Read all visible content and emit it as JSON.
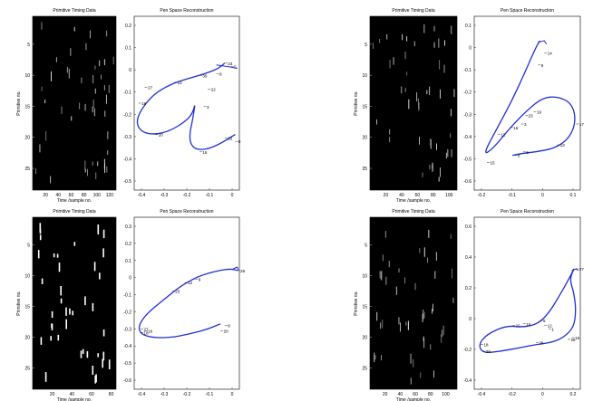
{
  "panels": [
    {
      "timing": {
        "title": "Primitive Timing Data",
        "ylabel": "Primitive no.",
        "xlabel": "Time /sample no.",
        "xticks": [
          "20",
          "40",
          "60",
          "80",
          "100",
          "120"
        ],
        "yticks": [
          "5",
          "10",
          "15",
          "20",
          "25"
        ],
        "xmax": 130
      },
      "pen": {
        "title": "Pen Space Reconstruction",
        "xticks": [
          "-0.4",
          "-0.3",
          "-0.2",
          "-0.1",
          "0"
        ],
        "yticks": [
          "0.2",
          "0.1",
          "0",
          "-0.1",
          "-0.2",
          "-0.3",
          "-0.4",
          "-0.5"
        ],
        "labels": [
          "23",
          "27",
          "18",
          "12",
          "22",
          "9",
          "3",
          "5",
          "30",
          "25",
          "8",
          "20",
          "16",
          "6"
        ]
      }
    },
    {
      "timing": {
        "title": "Primitive Timing Data",
        "ylabel": "Primitive no.",
        "xlabel": "Time /sample no.",
        "xticks": [
          "20",
          "40",
          "60",
          "80",
          "100"
        ],
        "yticks": [
          "5",
          "10",
          "15",
          "20",
          "25"
        ],
        "xmax": 110
      },
      "pen": {
        "title": "Pen Space Reconstruction",
        "xticks": [
          "-0.2",
          "-0.1",
          "0",
          "0.1"
        ],
        "yticks": [
          "0.1",
          "0",
          "-0.1",
          "-0.2",
          "-0.3",
          "-0.4",
          "-0.5",
          "-0.6"
        ],
        "labels": [
          "14",
          "9",
          "19",
          "23",
          "3",
          "16",
          "12",
          "15",
          "17",
          "13",
          "6",
          "8"
        ]
      }
    },
    {
      "timing": {
        "title": "Primitive Timing Data",
        "ylabel": "Primitive no.",
        "xlabel": "Time /sample no.",
        "xticks": [
          "20",
          "40",
          "60",
          "80"
        ],
        "yticks": [
          "5",
          "10",
          "15",
          "20",
          "25"
        ],
        "xmax": 85
      },
      "pen": {
        "title": "Pen Space Reconstruction",
        "xticks": [
          "-0.4",
          "-0.3",
          "-0.2",
          "-0.1",
          "0"
        ],
        "yticks": [
          "0.3",
          "0.2",
          "0.1",
          "0",
          "-0.1",
          "-0.2",
          "-0.3",
          "-0.4",
          "-0.5",
          "-0.6"
        ],
        "labels": [
          "26",
          "23",
          "12",
          "9",
          "16",
          "27",
          "18",
          "8",
          "20"
        ]
      }
    },
    {
      "timing": {
        "title": "Primitive Timing Data",
        "ylabel": "Primitive no.",
        "xlabel": "Time /sample no.",
        "xticks": [
          "20",
          "40",
          "60",
          "80",
          "100"
        ],
        "yticks": [
          "5",
          "10",
          "15",
          "20",
          "25"
        ],
        "xmax": 115
      },
      "pen": {
        "title": "Pen Space Reconstruction",
        "xticks": [
          "-0.4",
          "-0.2",
          "0",
          "0.2"
        ],
        "yticks": [
          "0.6",
          "0.4",
          "0.2",
          "0",
          "-0.2",
          "-0.4"
        ],
        "labels": [
          "27",
          "22",
          "16",
          "6",
          "12",
          "1",
          "28",
          "18",
          "29",
          "26",
          "15"
        ]
      }
    }
  ],
  "chart_data": [
    {
      "type": "heatmap",
      "title": "Primitive Timing Data",
      "xlabel": "Time /sample no.",
      "ylabel": "Primitive no.",
      "xlim": [
        1,
        130
      ],
      "ylim": [
        1,
        28
      ]
    },
    {
      "type": "line",
      "title": "Pen Space Reconstruction",
      "xlim": [
        -0.45,
        0.05
      ],
      "ylim": [
        -0.58,
        0.28
      ],
      "series": [
        {
          "x": [
            -0.06,
            -0.04,
            -0.08,
            -0.14,
            -0.22,
            -0.33,
            -0.42,
            -0.45,
            -0.42,
            -0.34,
            -0.2,
            -0.12,
            -0.11,
            -0.1,
            -0.08,
            -0.05,
            -0.02,
            0.0,
            0.02,
            0.04
          ],
          "y": [
            0.03,
            0.0,
            0.02,
            0.0,
            -0.04,
            -0.1,
            -0.17,
            -0.23,
            -0.29,
            -0.31,
            -0.33,
            -0.34,
            -0.35,
            -0.34,
            -0.33,
            -0.32,
            -0.3,
            -0.29,
            -0.28,
            -0.28
          ]
        }
      ]
    },
    {
      "type": "heatmap",
      "title": "Primitive Timing Data",
      "xlabel": "Time /sample no.",
      "ylabel": "Primitive no.",
      "xlim": [
        1,
        110
      ],
      "ylim": [
        1,
        28
      ]
    },
    {
      "type": "line",
      "title": "Pen Space Reconstruction",
      "xlim": [
        -0.25,
        0.18
      ],
      "ylim": [
        -0.62,
        0.16
      ],
      "series": [
        {
          "x": [
            0.03,
            0.0,
            -0.05,
            -0.12,
            -0.2,
            -0.25,
            -0.18,
            -0.08,
            0.02,
            0.09,
            0.15,
            0.17,
            0.15,
            0.09,
            0.02,
            -0.05,
            -0.1
          ],
          "y": [
            0.0,
            -0.05,
            -0.15,
            -0.3,
            -0.45,
            -0.58,
            -0.47,
            -0.33,
            -0.21,
            -0.2,
            -0.24,
            -0.3,
            -0.38,
            -0.44,
            -0.47,
            -0.48,
            -0.49
          ]
        }
      ]
    },
    {
      "type": "heatmap",
      "title": "Primitive Timing Data",
      "xlabel": "Time /sample no.",
      "ylabel": "Primitive no.",
      "xlim": [
        1,
        85
      ],
      "ylim": [
        1,
        28
      ]
    },
    {
      "type": "line",
      "title": "Pen Space Reconstruction",
      "xlim": [
        -0.45,
        0.05
      ],
      "ylim": [
        -0.63,
        0.32
      ],
      "series": [
        {
          "x": [
            0.03,
            0.0,
            -0.07,
            -0.17,
            -0.28,
            -0.38,
            -0.44,
            -0.42,
            -0.33,
            -0.22,
            -0.12,
            -0.06,
            -0.04
          ],
          "y": [
            0.02,
            0.04,
            0.03,
            -0.02,
            -0.1,
            -0.17,
            -0.24,
            -0.31,
            -0.36,
            -0.38,
            -0.37,
            -0.33,
            -0.29
          ]
        }
      ]
    },
    {
      "type": "heatmap",
      "title": "Primitive Timing Data",
      "xlabel": "Time /sample no.",
      "ylabel": "Primitive no.",
      "xlim": [
        1,
        115
      ],
      "ylim": [
        1,
        28
      ]
    },
    {
      "type": "line",
      "title": "Pen Space Reconstruction",
      "xlim": [
        -0.45,
        0.25
      ],
      "ylim": [
        -0.5,
        0.68
      ],
      "series": [
        {
          "x": [
            0.21,
            0.18,
            0.1,
            0.0,
            -0.08,
            -0.14,
            -0.26,
            -0.38,
            -0.43,
            -0.38,
            -0.26,
            -0.14,
            -0.02,
            0.08,
            0.15,
            0.19,
            0.21,
            0.18,
            0.12,
            0.05
          ],
          "y": [
            0.38,
            0.34,
            0.2,
            0.04,
            -0.04,
            -0.08,
            -0.04,
            0.0,
            -0.1,
            -0.2,
            -0.16,
            -0.1,
            -0.14,
            -0.2,
            -0.14,
            -0.04,
            0.1,
            0.24,
            0.34,
            0.38
          ]
        }
      ]
    }
  ]
}
